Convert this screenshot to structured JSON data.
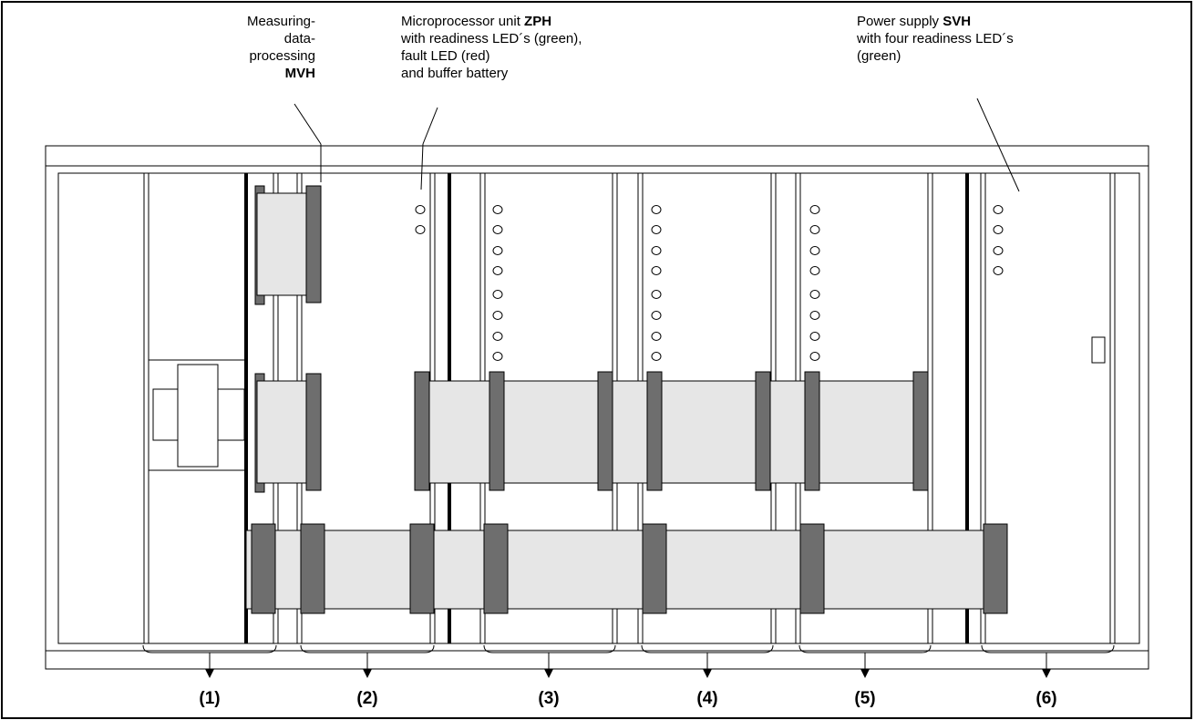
{
  "labels": {
    "mvh": {
      "lines": [
        "Measuring-",
        "data-",
        "processing"
      ],
      "bold": "MVH"
    },
    "zph": {
      "line1_prefix": "Microprocessor unit ",
      "line1_bold": "ZPH",
      "lines": [
        "with readiness LED´s (green),",
        "fault LED (red)",
        "and buffer battery"
      ]
    },
    "svh": {
      "line1_prefix": "Power supply ",
      "line1_bold": "SVH",
      "lines": [
        "with four readiness LED´s",
        "(green)"
      ]
    }
  },
  "modules": [
    "(1)",
    "(2)",
    "(3)",
    "(4)",
    "(5)",
    "(6)"
  ],
  "colors": {
    "connector_fill": "#e6e6e6",
    "connector_dark": "#6e6e6e",
    "line": "#000000"
  }
}
